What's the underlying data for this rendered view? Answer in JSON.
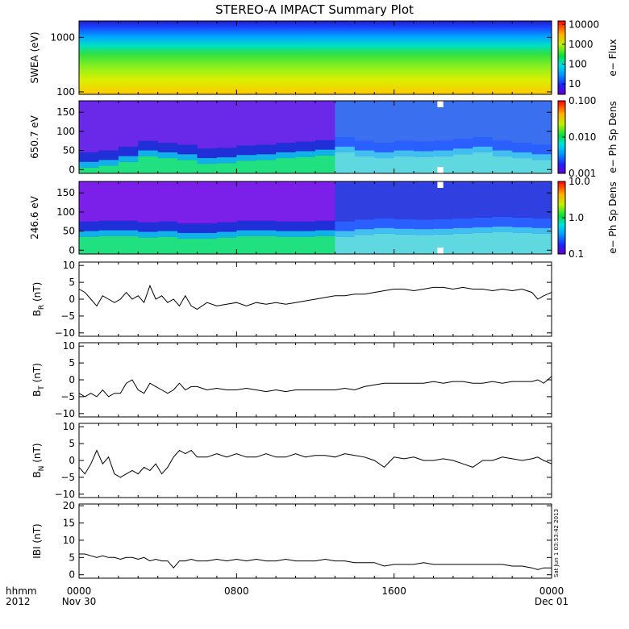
{
  "chart_data": {
    "type": "line",
    "title": "STEREO-A IMPACT Summary Plot",
    "x_axis": {
      "corner_label_1": "hhmm",
      "corner_label_2": "2012",
      "major_ticks": [
        {
          "hours": 0,
          "line1": "0000",
          "line2": "Nov 30"
        },
        {
          "hours": 8,
          "line1": "0800",
          "line2": ""
        },
        {
          "hours": 16,
          "line1": "1600",
          "line2": ""
        },
        {
          "hours": 24,
          "line1": "0000",
          "line2": "Dec 01"
        }
      ],
      "range_hours": [
        0,
        24
      ]
    },
    "timestamp": "Sat Jun 1 03:53:42 2013",
    "spectrograms": [
      {
        "ylabel": "SWEA (eV)",
        "yscale": "log",
        "ylim": [
          90,
          2000
        ],
        "yticks": [
          100,
          1000
        ],
        "ytick_labels": [
          "100",
          "1000"
        ],
        "cbar_label": "e− Flux",
        "cbar_scale": "log",
        "cbar_range": [
          3,
          15000
        ],
        "cbar_ticks": [
          10,
          100,
          1000,
          10000
        ],
        "cbar_tick_labels": [
          "10",
          "100",
          "1000",
          "10000"
        ],
        "description_bands": [
          {
            "energy": 1800,
            "level": 0.12
          },
          {
            "energy": 1000,
            "level": 0.3
          },
          {
            "energy": 500,
            "level": 0.55
          },
          {
            "energy": 250,
            "level": 0.68
          },
          {
            "energy": 100,
            "level": 0.85
          }
        ]
      },
      {
        "ylabel": "650.7 eV",
        "yscale": "linear",
        "ylim": [
          -10,
          180
        ],
        "yticks": [
          0,
          50,
          100,
          150
        ],
        "ytick_labels": [
          "0",
          "50",
          "100",
          "150"
        ],
        "cbar_label": "e− Ph Sp Dens",
        "cbar_scale": "log",
        "cbar_range": [
          0.001,
          0.1
        ],
        "cbar_ticks": [
          0.001,
          0.01,
          0.1
        ],
        "cbar_tick_labels": [
          "0.001",
          "0.010",
          "0.100"
        ],
        "pitch_center_profile": {
          "hours": [
            0,
            1,
            2,
            3,
            4,
            5,
            6,
            7,
            8,
            9,
            10,
            11,
            12,
            13,
            14,
            15,
            16,
            17,
            18,
            19,
            20,
            21,
            22,
            23,
            24
          ],
          "center_deg": [
            30,
            35,
            45,
            60,
            55,
            50,
            40,
            42,
            48,
            50,
            55,
            58,
            62,
            70,
            60,
            55,
            60,
            58,
            60,
            65,
            70,
            60,
            55,
            50,
            50
          ]
        },
        "data_gap_hours": [
          18.2,
          18.5
        ]
      },
      {
        "ylabel": "246.6 eV",
        "yscale": "linear",
        "ylim": [
          -10,
          180
        ],
        "yticks": [
          0,
          50,
          100,
          150
        ],
        "ytick_labels": [
          "0",
          "50",
          "100",
          "150"
        ],
        "cbar_label": "e− Ph Sp Dens",
        "cbar_scale": "log",
        "cbar_range": [
          0.1,
          10
        ],
        "cbar_ticks": [
          0.1,
          1,
          10
        ],
        "cbar_tick_labels": [
          "0.1",
          "1.0",
          "10.0"
        ],
        "pitch_center_profile": {
          "hours": [
            0,
            1,
            2,
            3,
            4,
            5,
            6,
            7,
            8,
            9,
            10,
            11,
            12,
            13,
            14,
            15,
            16,
            17,
            18,
            19,
            20,
            21,
            22,
            23,
            24
          ],
          "center_deg": [
            60,
            62,
            62,
            58,
            60,
            55,
            55,
            58,
            62,
            62,
            60,
            60,
            62,
            60,
            65,
            68,
            66,
            65,
            66,
            68,
            70,
            72,
            70,
            68,
            68
          ]
        },
        "data_gap_hours": [
          18.2,
          18.5
        ]
      }
    ],
    "series": [
      {
        "name": "BR",
        "ylabel_main": "B",
        "ylabel_sub": "R",
        "ylabel_unit": " (nT)",
        "ylim": [
          -11,
          11
        ],
        "yticks": [
          -10,
          -5,
          0,
          5,
          10
        ],
        "ytick_labels": [
          "−10",
          "−5",
          "0",
          "5",
          "10"
        ],
        "x_hours": [
          0,
          0.3,
          0.6,
          0.9,
          1.2,
          1.5,
          1.8,
          2.1,
          2.4,
          2.7,
          3.0,
          3.3,
          3.6,
          3.9,
          4.2,
          4.5,
          4.8,
          5.1,
          5.4,
          5.7,
          6.0,
          6.5,
          7.0,
          7.5,
          8.0,
          8.5,
          9.0,
          9.5,
          10.0,
          10.5,
          11.0,
          11.5,
          12.0,
          12.5,
          13.0,
          13.5,
          14.0,
          14.5,
          15.0,
          15.5,
          16.0,
          16.5,
          17.0,
          17.5,
          18.0,
          18.5,
          19.0,
          19.5,
          20.0,
          20.5,
          21.0,
          21.5,
          22.0,
          22.5,
          23.0,
          23.3,
          23.6,
          24.0
        ],
        "values": [
          3,
          2,
          0,
          -2,
          1,
          0,
          -1,
          0,
          2,
          0,
          1,
          -1,
          4,
          0,
          1,
          -1,
          0,
          -2,
          1,
          -2,
          -3,
          -1,
          -2,
          -1.5,
          -1,
          -2,
          -1,
          -1.5,
          -1,
          -1.5,
          -1,
          -0.5,
          0,
          0.5,
          1,
          1,
          1.5,
          1.5,
          2,
          2.5,
          3,
          3,
          2.5,
          3,
          3.5,
          3.5,
          3,
          3.5,
          3,
          3,
          2.5,
          3,
          2.5,
          3,
          2,
          0,
          1,
          2
        ]
      },
      {
        "name": "BT",
        "ylabel_main": "B",
        "ylabel_sub": "T",
        "ylabel_unit": " (nT)",
        "ylim": [
          -11,
          11
        ],
        "yticks": [
          -10,
          -5,
          0,
          5,
          10
        ],
        "ytick_labels": [
          "−10",
          "−5",
          "0",
          "5",
          "10"
        ],
        "x_hours": [
          0,
          0.3,
          0.6,
          0.9,
          1.2,
          1.5,
          1.8,
          2.1,
          2.4,
          2.7,
          3.0,
          3.3,
          3.6,
          3.9,
          4.2,
          4.5,
          4.8,
          5.1,
          5.4,
          5.7,
          6.0,
          6.5,
          7.0,
          7.5,
          8.0,
          8.5,
          9.0,
          9.5,
          10.0,
          10.5,
          11.0,
          11.5,
          12.0,
          12.5,
          13.0,
          13.5,
          14.0,
          14.5,
          15.0,
          15.5,
          16.0,
          16.5,
          17.0,
          17.5,
          18.0,
          18.5,
          19.0,
          19.5,
          20.0,
          20.5,
          21.0,
          21.5,
          22.0,
          22.5,
          23.0,
          23.3,
          23.6,
          24.0
        ],
        "values": [
          -4,
          -5,
          -4,
          -5,
          -3,
          -5,
          -4,
          -4,
          -1,
          0,
          -3,
          -4,
          -1,
          -2,
          -3,
          -4,
          -3,
          -1,
          -3,
          -2,
          -2,
          -3,
          -2.5,
          -3,
          -3,
          -2.5,
          -3,
          -3.5,
          -3,
          -3.5,
          -3,
          -3,
          -3,
          -3,
          -3,
          -2.5,
          -3,
          -2,
          -1.5,
          -1,
          -1,
          -1,
          -1,
          -1,
          -0.5,
          -1,
          -0.5,
          -0.5,
          -1,
          -1,
          -0.5,
          -1,
          -0.5,
          -0.5,
          -0.5,
          0,
          -1,
          1
        ]
      },
      {
        "name": "BN",
        "ylabel_main": "B",
        "ylabel_sub": "N",
        "ylabel_unit": " (nT)",
        "ylim": [
          -11,
          11
        ],
        "yticks": [
          -10,
          -5,
          0,
          5,
          10
        ],
        "ytick_labels": [
          "−10",
          "−5",
          "0",
          "5",
          "10"
        ],
        "x_hours": [
          0,
          0.3,
          0.6,
          0.9,
          1.2,
          1.5,
          1.8,
          2.1,
          2.4,
          2.7,
          3.0,
          3.3,
          3.6,
          3.9,
          4.2,
          4.5,
          4.8,
          5.1,
          5.4,
          5.7,
          6.0,
          6.5,
          7.0,
          7.5,
          8.0,
          8.5,
          9.0,
          9.5,
          10.0,
          10.5,
          11.0,
          11.5,
          12.0,
          12.5,
          13.0,
          13.5,
          14.0,
          14.5,
          15.0,
          15.5,
          16.0,
          16.5,
          17.0,
          17.5,
          18.0,
          18.5,
          19.0,
          19.5,
          20.0,
          20.5,
          21.0,
          21.5,
          22.0,
          22.5,
          23.0,
          23.3,
          23.6,
          24.0
        ],
        "values": [
          -2,
          -4,
          -1,
          3,
          -1,
          1,
          -4,
          -5,
          -4,
          -3,
          -4,
          -2,
          -3,
          -1,
          -4,
          -2,
          1,
          3,
          2,
          3,
          1,
          1,
          2,
          1,
          2,
          1,
          1,
          2,
          1,
          1,
          2,
          1,
          1.5,
          1.5,
          1,
          2,
          1.5,
          1,
          0,
          -2,
          1,
          0.5,
          1,
          0,
          0,
          0.5,
          0,
          -1,
          -2,
          0,
          0,
          1,
          0.5,
          0,
          0.5,
          1,
          0,
          -1
        ]
      },
      {
        "name": "|B|",
        "ylabel_main": "IBI",
        "ylabel_sub": "",
        "ylabel_unit": " (nT)",
        "ylim": [
          -1,
          20.5
        ],
        "yticks": [
          0,
          5,
          10,
          15,
          20
        ],
        "ytick_labels": [
          "0",
          "5",
          "10",
          "15",
          "20"
        ],
        "x_hours": [
          0,
          0.3,
          0.6,
          0.9,
          1.2,
          1.5,
          1.8,
          2.1,
          2.4,
          2.7,
          3.0,
          3.3,
          3.6,
          3.9,
          4.2,
          4.5,
          4.8,
          5.1,
          5.4,
          5.7,
          6.0,
          6.5,
          7.0,
          7.5,
          8.0,
          8.5,
          9.0,
          9.5,
          10.0,
          10.5,
          11.0,
          11.5,
          12.0,
          12.5,
          13.0,
          13.5,
          14.0,
          14.5,
          15.0,
          15.5,
          16.0,
          16.5,
          17.0,
          17.5,
          18.0,
          18.5,
          19.0,
          19.5,
          20.0,
          20.5,
          21.0,
          21.5,
          22.0,
          22.5,
          23.0,
          23.3,
          23.6,
          24.0
        ],
        "values": [
          6,
          6,
          5.5,
          5,
          5.5,
          5,
          5,
          4.5,
          5,
          5,
          4.5,
          5,
          4,
          4.5,
          4,
          4,
          2,
          4,
          4,
          4.5,
          4,
          4,
          4.5,
          4,
          4.5,
          4,
          4.5,
          4,
          4,
          4.5,
          4,
          4,
          4,
          4.5,
          4,
          4,
          3.5,
          3.5,
          3.5,
          2.5,
          3,
          3,
          3,
          3.5,
          3,
          3,
          3,
          3,
          3,
          3,
          3,
          3,
          2.5,
          2.5,
          2,
          1.5,
          2,
          2
        ]
      }
    ]
  }
}
